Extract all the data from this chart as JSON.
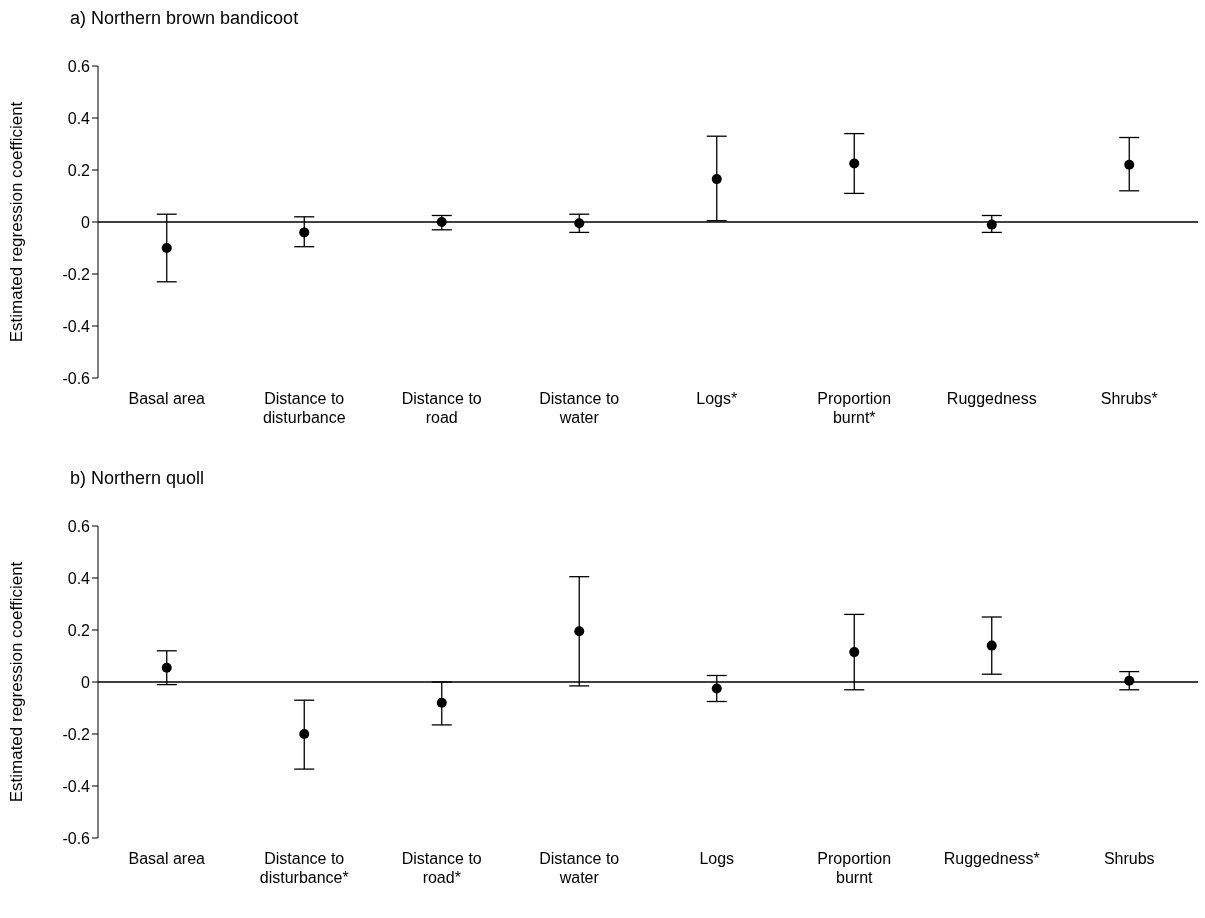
{
  "chart_data": [
    {
      "type": "scatter",
      "title": "a) Northern brown bandicoot",
      "ylabel": "Estimated regression coefficient",
      "categories": [
        "Basal area",
        "Distance to disturbance",
        "Distance to road",
        "Distance to water",
        "Logs*",
        "Proportion burnt*",
        "Ruggedness",
        "Shrubs*"
      ],
      "values": [
        -0.1,
        -0.04,
        0.0,
        -0.005,
        0.165,
        0.225,
        -0.01,
        0.22
      ],
      "errors": [
        [
          -0.23,
          0.03
        ],
        [
          -0.095,
          0.02
        ],
        [
          -0.03,
          0.025
        ],
        [
          -0.04,
          0.03
        ],
        [
          0.005,
          0.33
        ],
        [
          0.11,
          0.34
        ],
        [
          -0.04,
          0.025
        ],
        [
          0.12,
          0.325
        ]
      ],
      "color": "#000000",
      "marker": "circle",
      "ylim": [
        -0.6,
        0.6
      ],
      "yticks": [
        -0.6,
        -0.4,
        -0.2,
        0,
        0.2,
        0.4,
        0.6
      ],
      "ref_lines": [
        {
          "axis": "y",
          "value": 0,
          "color": "#000000"
        }
      ]
    },
    {
      "type": "scatter",
      "title": "b) Northern quoll",
      "ylabel": "Estimated regression coefficient",
      "categories": [
        "Basal area",
        "Distance to disturbance*",
        "Distance to road*",
        "Distance to water",
        "Logs",
        "Proportion burnt",
        "Ruggedness*",
        "Shrubs"
      ],
      "values": [
        0.055,
        -0.2,
        -0.08,
        0.195,
        -0.025,
        0.115,
        0.14,
        0.005
      ],
      "errors": [
        [
          -0.01,
          0.12
        ],
        [
          -0.335,
          -0.07
        ],
        [
          -0.165,
          0.0
        ],
        [
          -0.015,
          0.405
        ],
        [
          -0.075,
          0.025
        ],
        [
          -0.03,
          0.26
        ],
        [
          0.03,
          0.25
        ],
        [
          -0.03,
          0.04
        ]
      ],
      "color": "#000000",
      "marker": "circle",
      "ylim": [
        -0.6,
        0.6
      ],
      "yticks": [
        -0.6,
        -0.4,
        -0.2,
        0,
        0.2,
        0.4,
        0.6
      ],
      "ref_lines": [
        {
          "axis": "y",
          "value": 0,
          "color": "#000000"
        }
      ]
    }
  ]
}
